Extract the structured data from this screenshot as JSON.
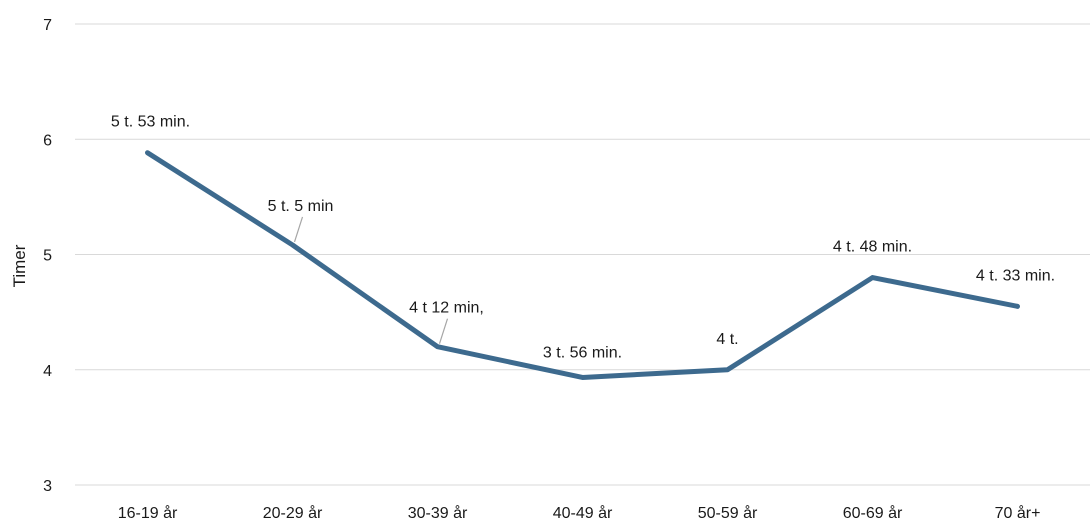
{
  "chart_data": {
    "type": "line",
    "title": "",
    "xlabel": "",
    "ylabel": "Timer",
    "ylim": [
      3,
      7
    ],
    "yticks": [
      3,
      4,
      5,
      6,
      7
    ],
    "grid": true,
    "categories": [
      "16-19 år",
      "20-29 år",
      "30-39 år",
      "40-49 år",
      "50-59 år",
      "60-69 år",
      "70 år+"
    ],
    "series": [
      {
        "color": "#3d6a8e",
        "values": [
          5.883,
          5.083,
          4.2,
          3.933,
          4.0,
          4.8,
          4.55
        ],
        "data_labels": [
          "5 t. 53 min.",
          "5 t. 5 min",
          "4 t  12 min,",
          "3 t. 56 min.",
          "4 t.",
          "4 t. 48 min.",
          "4 t. 33 min."
        ]
      }
    ]
  }
}
